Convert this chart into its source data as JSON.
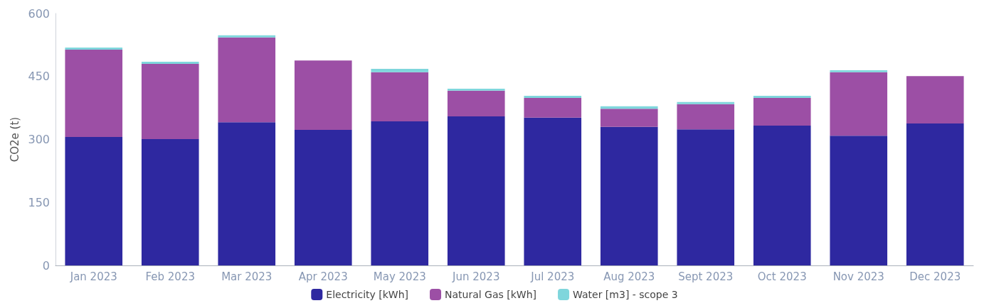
{
  "chart_data": {
    "type": "bar",
    "stacked": true,
    "ylabel": "CO2e (t)",
    "categories": [
      "Jan 2023",
      "Feb 2023",
      "Mar 2023",
      "Apr 2023",
      "May 2023",
      "Jun 2023",
      "Jul 2023",
      "Aug 2023",
      "Sept 2023",
      "Oct 2023",
      "Nov 2023",
      "Dec 2023"
    ],
    "series": [
      {
        "name": "Electricity [kWh]",
        "color": "#2e28a0",
        "values": [
          306,
          301,
          341,
          323,
          343,
          355,
          352,
          330,
          324,
          333,
          309,
          338
        ]
      },
      {
        "name": "Natural Gas [kWh]",
        "color": "#9c4fa5",
        "values": [
          208,
          179,
          202,
          165,
          117,
          61,
          47,
          43,
          60,
          66,
          151,
          113
        ]
      },
      {
        "name": "Water [m3] - scope 3",
        "color": "#7fd6dc",
        "values": [
          5,
          5,
          5,
          0,
          8,
          5,
          5,
          6,
          5,
          5,
          5,
          0
        ]
      }
    ],
    "ylim": [
      0,
      600
    ],
    "yticks": [
      0,
      150,
      300,
      450,
      600
    ],
    "grid": false,
    "legend": "bottom"
  }
}
